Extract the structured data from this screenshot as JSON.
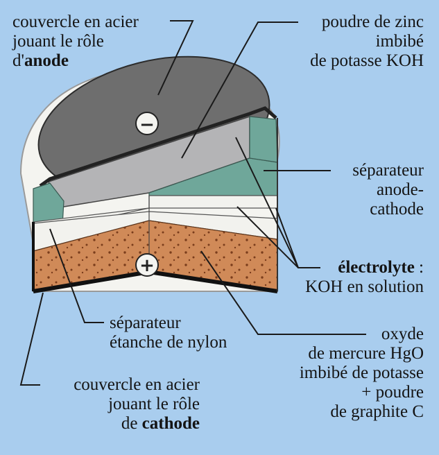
{
  "labels": {
    "anode_cover": {
      "line1": "couvercle en acier",
      "line2": "jouant le rôle",
      "line3_prefix": "d'",
      "line3_bold": "anode"
    },
    "zinc": {
      "line1": "poudre de zinc",
      "line2": "imbibé",
      "line3": "de potasse KOH"
    },
    "separator": {
      "line1": "séparateur",
      "line2": "anode-",
      "line3": "cathode"
    },
    "electrolyte": {
      "bold": "électrolyte",
      "suffix": " :",
      "line2": "KOH en solution"
    },
    "nylon": {
      "line1": "séparateur",
      "line2": "étanche de nylon"
    },
    "oxide": {
      "line1": "oxyde",
      "line2": "de mercure HgO",
      "line3": "imbibé de potasse",
      "line4": "+ poudre",
      "line5": "de graphite C"
    },
    "cathode_cover": {
      "line1": "couvercle en acier",
      "line2": "jouant le rôle",
      "line3_prefix": "de ",
      "line3_bold": "cathode"
    }
  },
  "symbols": {
    "minus": "−",
    "plus": "+"
  },
  "colors": {
    "background": "#a9cdee",
    "steel": "#6e6e6e",
    "zinc": "#b4b4b6",
    "separator": "#6fa79a",
    "electrolyte": "#f2f2ee",
    "oxide": "#d08a58",
    "outer_ring": "#f4f4f0"
  }
}
